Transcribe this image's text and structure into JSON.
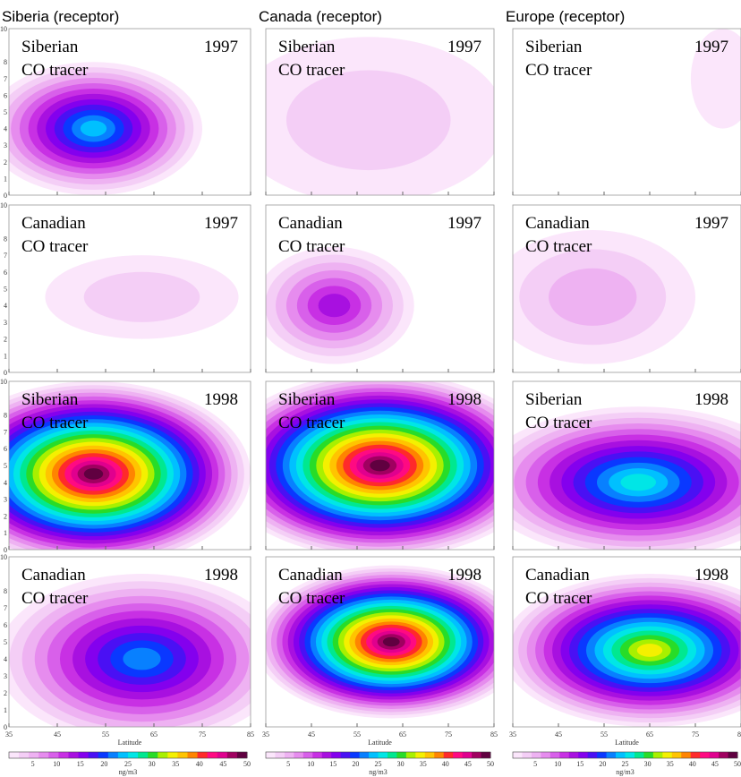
{
  "columns": [
    "Siberia (receptor)",
    "Canada (receptor)",
    "Europe (receptor)"
  ],
  "panels": [
    [
      {
        "tracer": [
          "Siberian",
          "CO tracer"
        ],
        "year": "1997"
      },
      {
        "tracer": [
          "Siberian",
          "CO tracer"
        ],
        "year": "1997"
      },
      {
        "tracer": [
          "Siberian",
          "CO tracer"
        ],
        "year": "1997"
      }
    ],
    [
      {
        "tracer": [
          "Canadian",
          "CO tracer"
        ],
        "year": "1997"
      },
      {
        "tracer": [
          "Canadian",
          "CO tracer"
        ],
        "year": "1997"
      },
      {
        "tracer": [
          "Canadian",
          "CO tracer"
        ],
        "year": "1997"
      }
    ],
    [
      {
        "tracer": [
          "Siberian",
          "CO tracer"
        ],
        "year": "1998"
      },
      {
        "tracer": [
          "Siberian",
          "CO tracer"
        ],
        "year": "1998"
      },
      {
        "tracer": [
          "Siberian",
          "CO tracer"
        ],
        "year": "1998"
      }
    ],
    [
      {
        "tracer": [
          "Canadian",
          "CO tracer"
        ],
        "year": "1998"
      },
      {
        "tracer": [
          "Canadian",
          "CO tracer"
        ],
        "year": "1998"
      },
      {
        "tracer": [
          "Canadian",
          "CO tracer"
        ],
        "year": "1998"
      }
    ]
  ],
  "ylim": [
    0,
    10
  ],
  "yticks": [
    0,
    1,
    2,
    3,
    4,
    5,
    6,
    7,
    8,
    10
  ],
  "xlim": [
    35,
    85
  ],
  "xticks": [
    35,
    45,
    55,
    65,
    75,
    85
  ],
  "xlabel": "Latitude",
  "colorbar": {
    "lim": [
      0,
      50
    ],
    "ticks": [
      5,
      10,
      15,
      20,
      25,
      30,
      35,
      40,
      45,
      50
    ],
    "unit": "ng/m3",
    "colors": [
      "#fbe6fb",
      "#f4cef6",
      "#eeb2f2",
      "#e68cee",
      "#d860ea",
      "#c830e4",
      "#a810e0",
      "#8400ee",
      "#4a10f4",
      "#0a38ff",
      "#0880ff",
      "#00c0ff",
      "#00e6e6",
      "#00e890",
      "#28dc28",
      "#a8f000",
      "#f4f000",
      "#ffc400",
      "#ff8400",
      "#ff2a2a",
      "#ff0a82",
      "#e0008e",
      "#a00060",
      "#600040"
    ]
  }
}
